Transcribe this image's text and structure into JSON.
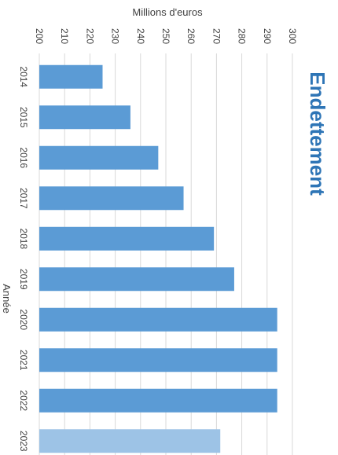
{
  "chart_data": {
    "type": "bar",
    "orientation": "horizontal",
    "title": "Endettement",
    "xlabel": "Millions d'euros",
    "ylabel": "Année",
    "xlim": [
      200,
      300
    ],
    "x_ticks": [
      "200",
      "210",
      "220",
      "230",
      "240",
      "250",
      "260",
      "270",
      "280",
      "290",
      "300"
    ],
    "grid": true,
    "categories": [
      "2014",
      "2015",
      "2016",
      "2017",
      "2018",
      "2019",
      "2020",
      "2021",
      "2022",
      "2023"
    ],
    "values": [
      225,
      236,
      247,
      257,
      269,
      277,
      294,
      294,
      294,
      271.5
    ],
    "bar_colors": [
      "#5b9bd5",
      "#5b9bd5",
      "#5b9bd5",
      "#5b9bd5",
      "#5b9bd5",
      "#5b9bd5",
      "#5b9bd5",
      "#5b9bd5",
      "#5b9bd5",
      "#9dc3e6"
    ],
    "colors": {
      "title": "#2e75b6",
      "grid": "#d9d9d9",
      "text": "#404040"
    }
  }
}
